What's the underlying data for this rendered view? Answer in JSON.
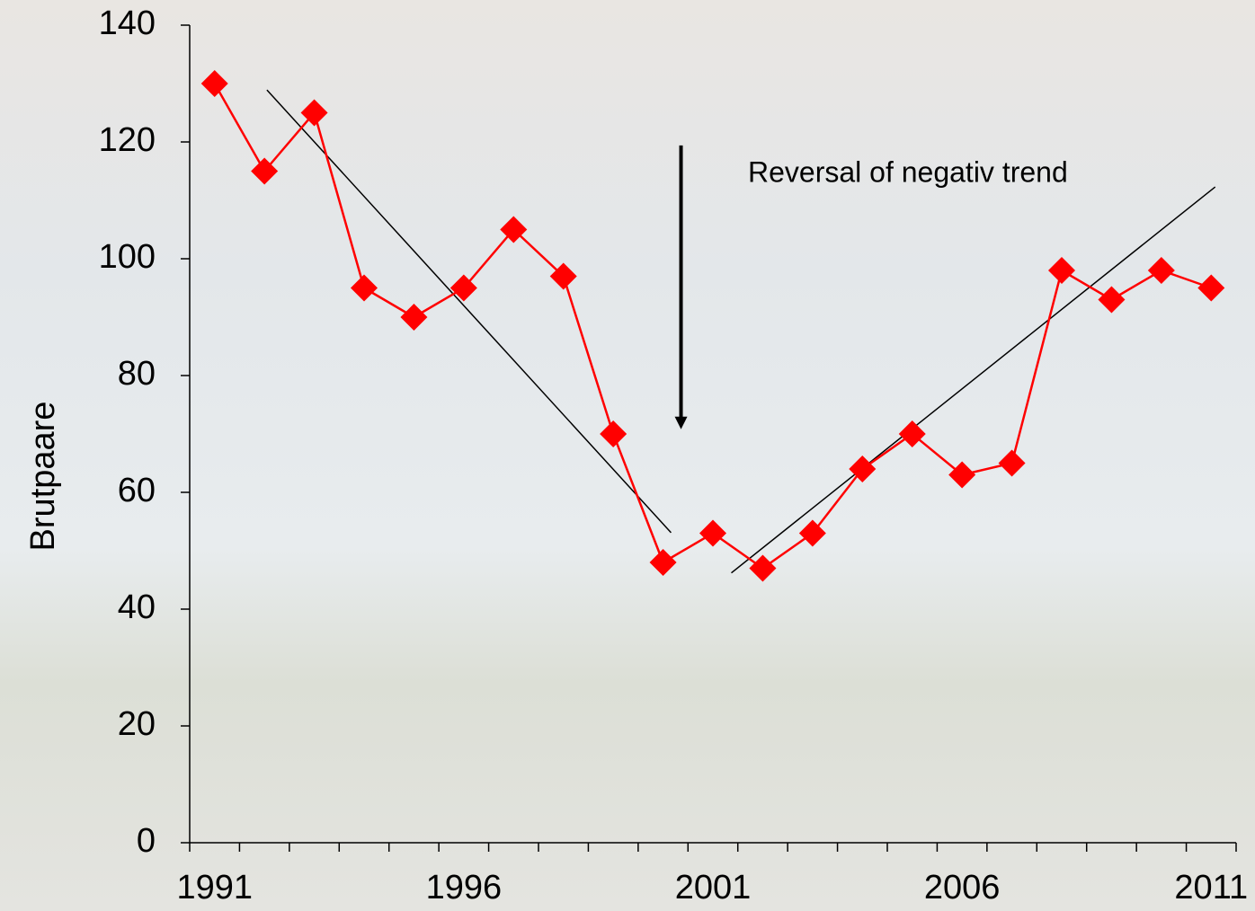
{
  "chart_data": {
    "type": "line",
    "y_label": "Brutpaare",
    "annotation": "Reversal of negativ trend",
    "x": [
      1991,
      1992,
      1993,
      1994,
      1995,
      1996,
      1997,
      1998,
      1999,
      2000,
      2001,
      2002,
      2003,
      2004,
      2005,
      2006,
      2007,
      2008,
      2009,
      2010,
      2011
    ],
    "series": [
      {
        "color": "#ff0000",
        "values": [
          130,
          115,
          125,
          95,
          90,
          95,
          105,
          97,
          70,
          48,
          53,
          47,
          53,
          64,
          70,
          63,
          65,
          98,
          93,
          98,
          95
        ]
      }
    ],
    "trend_lines": [
      {
        "x": [
          1992.05,
          2000.16
        ],
        "y": [
          128.9,
          53.1
        ],
        "color": "#000000"
      },
      {
        "x": [
          2001.37,
          2011.08
        ],
        "y": [
          46.2,
          112.3
        ],
        "color": "#000000"
      }
    ],
    "arrow": {
      "x": 2000.36,
      "y": [
        119.4,
        70.8
      ],
      "color": "#000000"
    },
    "xlim": [
      1990.5,
      2011.5
    ],
    "xticks": [
      1991,
      1996,
      2001,
      2006,
      2011
    ],
    "ylim": [
      0,
      140
    ],
    "yticks": [
      0,
      20,
      40,
      60,
      80,
      100,
      120,
      140
    ]
  }
}
